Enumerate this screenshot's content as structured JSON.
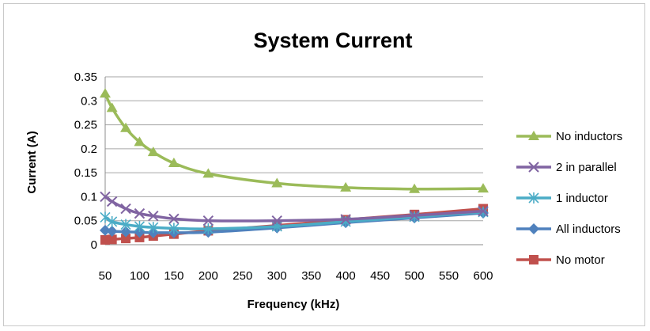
{
  "chart_data": {
    "type": "line",
    "title": "System Current",
    "xlabel": "Frequency (kHz)",
    "ylabel": "Current (A)",
    "xlim": [
      50,
      600
    ],
    "ylim": [
      0,
      0.35
    ],
    "x_ticks": [
      "50",
      "100",
      "150",
      "200",
      "250",
      "300",
      "350",
      "400",
      "450",
      "500",
      "550",
      "600"
    ],
    "y_ticks": [
      "0",
      "0.05",
      "0.1",
      "0.15",
      "0.2",
      "0.25",
      "0.3",
      "0.35"
    ],
    "grid": true,
    "legend_position": "right",
    "x": [
      50,
      60,
      80,
      100,
      120,
      150,
      200,
      300,
      400,
      500,
      600
    ],
    "series": [
      {
        "name": "No inductors",
        "color": "#9bbb59",
        "marker": "triangle",
        "values": [
          0.315,
          0.285,
          0.243,
          0.214,
          0.193,
          0.17,
          0.148,
          0.128,
          0.119,
          0.116,
          0.117
        ]
      },
      {
        "name": "2 in parallel",
        "color": "#8064a2",
        "marker": "x",
        "values": [
          0.1,
          0.09,
          0.075,
          0.065,
          0.06,
          0.054,
          0.05,
          0.05,
          0.053,
          0.061,
          0.07
        ]
      },
      {
        "name": "1 inductor",
        "color": "#4bacc6",
        "marker": "asterisk",
        "values": [
          0.057,
          0.048,
          0.042,
          0.038,
          0.036,
          0.034,
          0.033,
          0.038,
          0.048,
          0.058,
          0.068
        ]
      },
      {
        "name": "All inductors",
        "color": "#4f81bd",
        "marker": "diamond",
        "values": [
          0.03,
          0.028,
          0.027,
          0.026,
          0.025,
          0.025,
          0.026,
          0.035,
          0.046,
          0.056,
          0.066
        ]
      },
      {
        "name": "No motor",
        "color": "#c0504d",
        "marker": "square",
        "values": [
          0.01,
          0.011,
          0.013,
          0.015,
          0.018,
          0.022,
          0.029,
          0.04,
          0.052,
          0.063,
          0.075
        ]
      }
    ]
  }
}
